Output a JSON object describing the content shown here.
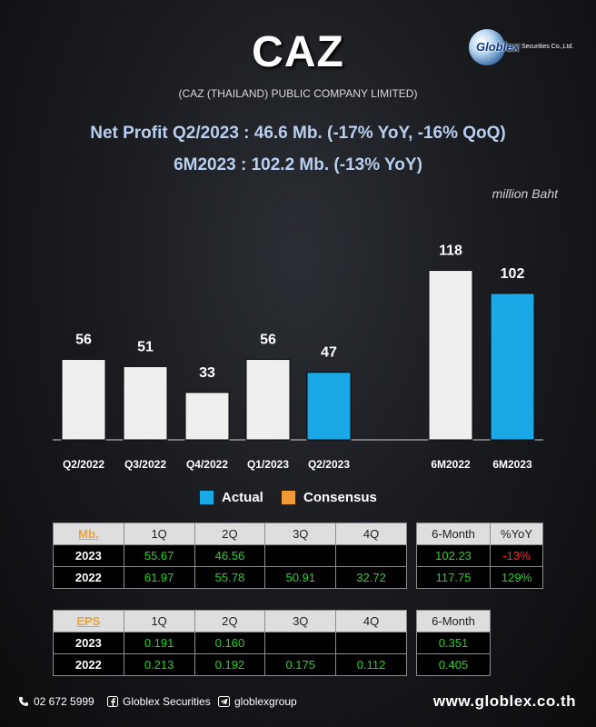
{
  "header": {
    "title": "CAZ",
    "subtitle": "(CAZ (THAILAND) PUBLIC COMPANY LIMITED)",
    "logo_text": "Globlex",
    "logo_sub": "Securities Co.,Ltd.",
    "headline1": "Net Profit  Q2/2023 : 46.6 Mb. (-17% YoY, -16% QoQ)",
    "headline2": "6M2023 : 102.2 Mb. (-13% YoY)",
    "unit": "million Baht"
  },
  "colors": {
    "actual": "#1aa8e6",
    "consensus": "#f29a35",
    "history_bar": "#efefef"
  },
  "chart_data": {
    "type": "bar",
    "categories": [
      "Q2/2022",
      "Q3/2022",
      "Q4/2022",
      "Q1/2023",
      "Q2/2023",
      "6M2022",
      "6M2023"
    ],
    "values": [
      56,
      51,
      33,
      56,
      47,
      118,
      102
    ],
    "bar_kind": [
      "history",
      "history",
      "history",
      "history",
      "actual",
      "history",
      "actual"
    ],
    "data_labels": [
      "56",
      "51",
      "33",
      "56",
      "47",
      "118",
      "102"
    ],
    "ylim": [
      0,
      130
    ],
    "legend": [
      "Actual",
      "Consensus"
    ],
    "legend_placement": "bottom"
  },
  "net_profit_table": {
    "headers": [
      "Mb.",
      "1Q",
      "2Q",
      "3Q",
      "4Q"
    ],
    "rows": [
      {
        "year": "2023",
        "cells": [
          "55.67",
          "46.56",
          "",
          ""
        ]
      },
      {
        "year": "2022",
        "cells": [
          "61.97",
          "55.78",
          "50.91",
          "32.72"
        ]
      }
    ],
    "side_headers": [
      "6-Month",
      "%YoY"
    ],
    "side_rows": [
      [
        "102.23",
        "-13%"
      ],
      [
        "117.75",
        "129%"
      ]
    ]
  },
  "eps_table": {
    "headers": [
      "EPS",
      "1Q",
      "2Q",
      "3Q",
      "4Q"
    ],
    "rows": [
      {
        "year": "2023",
        "cells": [
          "0.191",
          "0.160",
          "",
          ""
        ]
      },
      {
        "year": "2022",
        "cells": [
          "0.213",
          "0.192",
          "0.175",
          "0.112"
        ]
      }
    ],
    "side_headers": [
      "6-Month"
    ],
    "side_rows": [
      [
        "0.351"
      ],
      [
        "0.405"
      ]
    ]
  },
  "footer": {
    "phone": "02 672 5999",
    "facebook": "Globlex Securities",
    "telegram": "globlexgroup",
    "website": "www.globlex.co.th"
  }
}
